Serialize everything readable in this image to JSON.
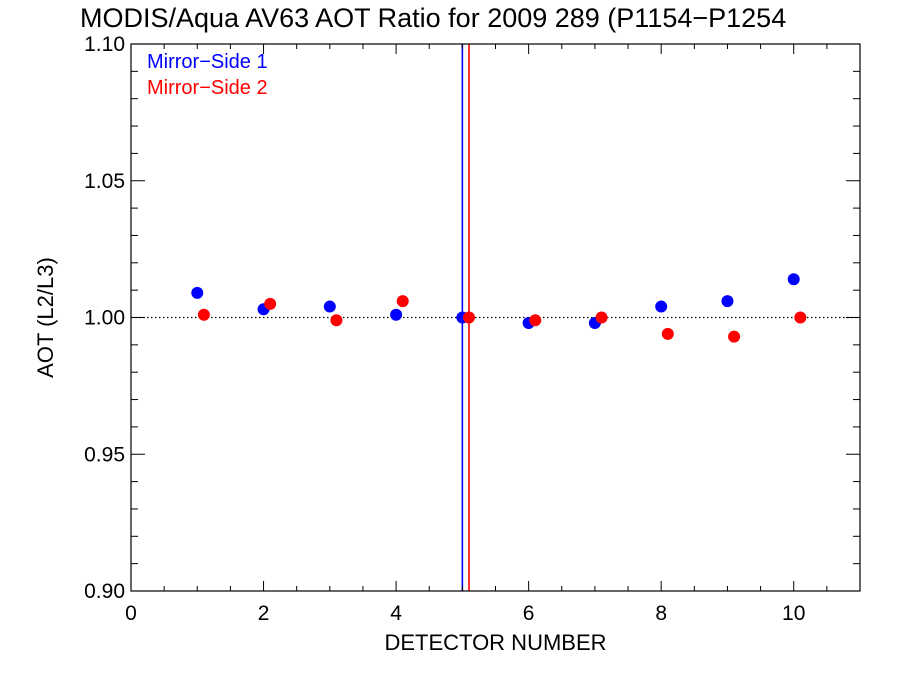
{
  "chart_data": {
    "type": "scatter",
    "title": "MODIS/Aqua AV63 AOT Ratio for 2009 289 (P1154−P1254",
    "xlabel": "DETECTOR NUMBER",
    "ylabel": "AOT (L2/L3)",
    "xlim": [
      0,
      11
    ],
    "ylim": [
      0.9,
      1.1
    ],
    "xticks": [
      0,
      2,
      4,
      6,
      8,
      10
    ],
    "xtick_labels": [
      "0",
      "2",
      "4",
      "6",
      "8",
      "10"
    ],
    "yticks": [
      0.9,
      0.95,
      1.0,
      1.05,
      1.1
    ],
    "ytick_labels": [
      "0.90",
      "0.95",
      "1.00",
      "1.05",
      "1.10"
    ],
    "x_minor_step": 0.5,
    "y_minor_step": 0.01,
    "reference_line": {
      "y": 1.0,
      "style": "dotted"
    },
    "grid": false,
    "legend_position": "top-left",
    "series": [
      {
        "name": "Mirror−Side 1",
        "color": "#0000ff",
        "x": [
          1,
          2,
          3,
          4,
          5,
          6,
          7,
          8,
          9,
          10
        ],
        "y": [
          1.009,
          1.003,
          1.004,
          1.001,
          1.0,
          0.998,
          0.998,
          1.004,
          1.006,
          1.014
        ],
        "vertical_line_x": 5.0
      },
      {
        "name": "Mirror−Side 2",
        "color": "#ff0000",
        "x": [
          1.1,
          2.1,
          3.1,
          4.1,
          5.1,
          6.1,
          7.1,
          8.1,
          9.1,
          10.1
        ],
        "y": [
          1.001,
          1.005,
          0.999,
          1.006,
          1.0,
          0.999,
          1.0,
          0.994,
          0.993,
          1.0
        ],
        "vertical_line_x": 5.1
      }
    ]
  }
}
